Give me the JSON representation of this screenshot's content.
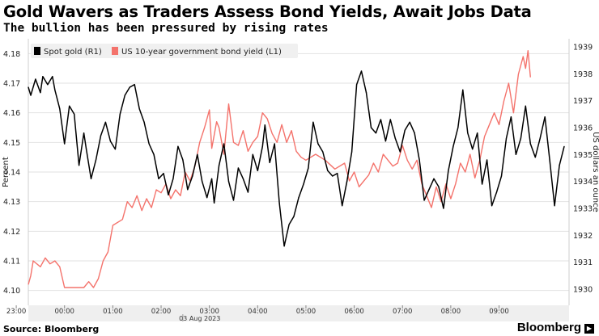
{
  "header": {
    "title": "Gold Wavers as Traders Assess Bond Yields, Await Jobs Data",
    "subtitle": "The bullion has been pressured by rising rates"
  },
  "footer": {
    "source": "Source: Bloomberg",
    "brand": "Bloomberg"
  },
  "chart_data": {
    "type": "line",
    "title": "Gold Wavers as Traders Assess Bond Yields, Await Jobs Data",
    "subtitle": "The bullion has been pressured by rising rates",
    "y_left_label": "Percent",
    "y_right_label": "US dollars an ounce",
    "y_left_lim": [
      4.095,
      4.185
    ],
    "y_left_ticks": [
      "4.10",
      "4.11",
      "4.12",
      "4.13",
      "4.14",
      "4.15",
      "4.16",
      "4.17",
      "4.18"
    ],
    "y_right_lim": [
      1929.4,
      1939.3
    ],
    "y_right_ticks": [
      "1930",
      "1931",
      "1932",
      "1933",
      "1934",
      "1935",
      "1936",
      "1937",
      "1938",
      "1939"
    ],
    "x_ticks": [
      "23:00",
      "00:00",
      "01:00",
      "02:00",
      "03:00",
      "04:00",
      "05:00",
      "06:00",
      "07:00",
      "08:00",
      "09:00"
    ],
    "x_date_label": "03 Aug 2023",
    "x_range_hours": [
      -0.75,
      10.45
    ],
    "grid": true,
    "legend_position": "top-left",
    "series": [
      {
        "name": "Spot gold (R1)",
        "axis": "right",
        "color": "#000000",
        "x": [
          -0.75,
          -0.7,
          -0.6,
          -0.5,
          -0.45,
          -0.35,
          -0.25,
          -0.2,
          -0.1,
          0.0,
          0.1,
          0.2,
          0.3,
          0.4,
          0.45,
          0.55,
          0.65,
          0.75,
          0.85,
          0.95,
          1.05,
          1.15,
          1.25,
          1.35,
          1.45,
          1.55,
          1.65,
          1.75,
          1.85,
          1.95,
          2.05,
          2.15,
          2.25,
          2.35,
          2.45,
          2.55,
          2.65,
          2.75,
          2.85,
          2.95,
          3.05,
          3.1,
          3.2,
          3.3,
          3.4,
          3.5,
          3.6,
          3.7,
          3.8,
          3.9,
          4.0,
          4.1,
          4.15,
          4.25,
          4.35,
          4.45,
          4.55,
          4.65,
          4.75,
          4.85,
          4.95,
          5.05,
          5.15,
          5.25,
          5.35,
          5.45,
          5.55,
          5.65,
          5.75,
          5.85,
          5.95,
          6.05,
          6.15,
          6.25,
          6.35,
          6.45,
          6.55,
          6.65,
          6.75,
          6.85,
          6.95,
          7.05,
          7.15,
          7.25,
          7.35,
          7.45,
          7.55,
          7.65,
          7.75,
          7.85,
          7.95,
          8.05,
          8.15,
          8.25,
          8.35,
          8.45,
          8.55,
          8.65,
          8.75,
          8.85,
          8.95,
          9.05,
          9.15,
          9.25,
          9.35,
          9.45,
          9.55,
          9.65,
          9.75,
          9.85,
          9.95,
          10.05,
          10.15,
          10.25,
          10.35
        ],
        "y": [
          1937.5,
          1937.2,
          1937.8,
          1937.3,
          1937.9,
          1937.6,
          1937.9,
          1937.4,
          1936.7,
          1935.4,
          1936.8,
          1936.5,
          1934.6,
          1935.8,
          1935.2,
          1934.1,
          1934.8,
          1935.7,
          1936.2,
          1935.5,
          1935.2,
          1936.5,
          1937.2,
          1937.5,
          1937.6,
          1936.7,
          1936.2,
          1935.4,
          1935.0,
          1934.1,
          1934.3,
          1933.5,
          1934.1,
          1935.3,
          1934.8,
          1933.7,
          1934.2,
          1935.0,
          1934.0,
          1933.4,
          1934.1,
          1933.2,
          1934.6,
          1935.4,
          1934.0,
          1933.3,
          1934.5,
          1934.1,
          1933.6,
          1935.0,
          1934.4,
          1935.3,
          1936.1,
          1934.7,
          1935.4,
          1933.2,
          1931.6,
          1932.4,
          1932.7,
          1933.4,
          1933.9,
          1934.5,
          1936.2,
          1935.4,
          1935.1,
          1934.4,
          1934.2,
          1934.3,
          1933.1,
          1934.0,
          1935.1,
          1937.6,
          1938.1,
          1937.3,
          1936.0,
          1935.8,
          1936.3,
          1935.5,
          1936.3,
          1935.6,
          1935.1,
          1935.9,
          1936.2,
          1935.8,
          1934.8,
          1933.3,
          1933.7,
          1934.1,
          1933.8,
          1933.0,
          1934.4,
          1935.3,
          1936.0,
          1937.4,
          1935.8,
          1935.2,
          1935.8,
          1933.9,
          1934.8,
          1933.1,
          1933.6,
          1934.2,
          1935.6,
          1936.4,
          1935.0,
          1935.6,
          1936.8,
          1935.4,
          1934.9,
          1935.6,
          1936.4,
          1934.8,
          1933.1,
          1934.6,
          1935.3
        ],
        "x2": [],
        "note_tail": []
      },
      {
        "name": "US 10-year government bond yield (L1)",
        "axis": "left",
        "color": "#f4736c",
        "x": [],
        "y": []
      }
    ]
  }
}
